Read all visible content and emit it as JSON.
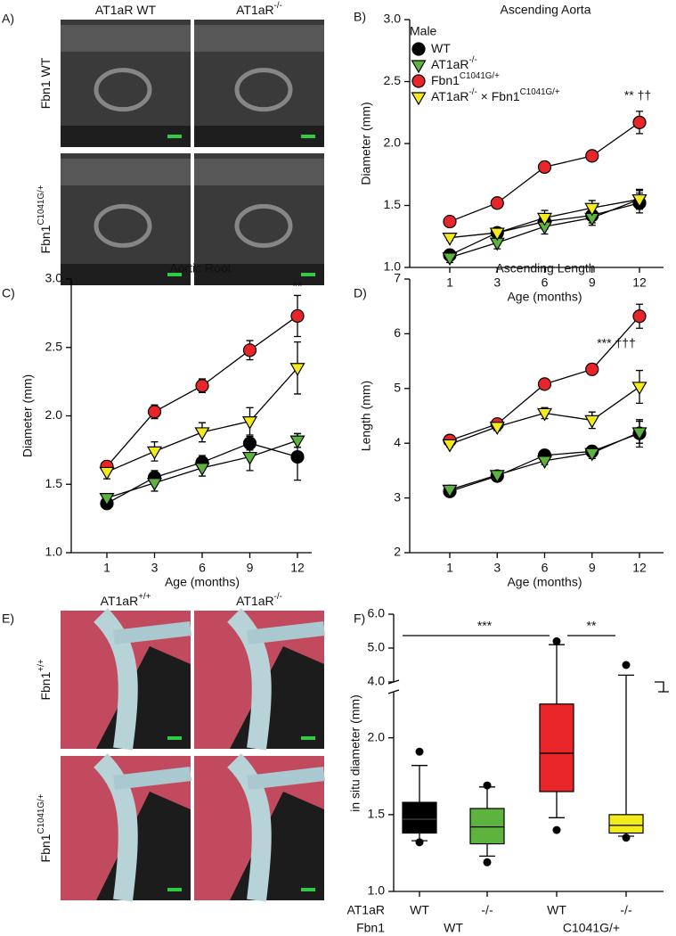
{
  "image_panels": [
    {
      "label": "A)",
      "columns": [
        "AT1aR WT",
        "AT1aR-/-"
      ],
      "rows": [
        "Fbn1 WT",
        "Fbn1C1041G/+"
      ]
    },
    {
      "label": "E)",
      "columns": [
        "AT1aR+/+",
        "AT1aR-/-"
      ],
      "rows": [
        "Fbn1+/+",
        "Fbn1C1041G/+"
      ]
    }
  ],
  "chart_data": [
    {
      "type": "line",
      "panel": "B)",
      "title": "Ascending Aorta",
      "xlabel": "Age (months)",
      "ylabel": "Diameter (mm)",
      "categories": [
        "1",
        "3",
        "6",
        "9",
        "12"
      ],
      "ylim": [
        1,
        3
      ],
      "yticks": [
        {
          "value": 1,
          "label": "1.0"
        },
        1.5,
        {
          "value": 2,
          "label": "2.0"
        },
        2.5,
        {
          "value": 3,
          "label": "3.0"
        }
      ],
      "legend": true,
      "legend_title": "Male",
      "annotation": "** ††",
      "series": [
        {
          "name": "WT",
          "color": "#000000",
          "marker": "circle",
          "values": [
            1.1,
            1.28,
            1.37,
            1.42,
            1.52
          ],
          "errors": [
            0.04,
            0.04,
            0.06,
            0.06,
            0.08
          ]
        },
        {
          "name": "AT1aR-/-",
          "color": "#5db33d",
          "marker": "triangle-down",
          "values": [
            1.08,
            1.2,
            1.33,
            1.4,
            1.55
          ],
          "errors": [
            0.04,
            0.05,
            0.06,
            0.06,
            0.07
          ]
        },
        {
          "name": "Fbn1C1041G/+",
          "color": "#e8262a",
          "marker": "circle",
          "values": [
            1.37,
            1.52,
            1.81,
            1.9,
            2.17
          ],
          "errors": [
            0.02,
            0.02,
            0.04,
            0.04,
            0.09
          ]
        },
        {
          "name": "AT1aR-/- × Fbn1C1041G/+",
          "color": "#f4ec1a",
          "marker": "triangle-down",
          "values": [
            1.24,
            1.28,
            1.4,
            1.48,
            1.55
          ],
          "errors": [
            0.02,
            0.02,
            0.06,
            0.06,
            0.08
          ]
        }
      ]
    },
    {
      "type": "line",
      "panel": "C)",
      "title": "Aortic Root",
      "xlabel": "Age (months)",
      "ylabel": "Diameter (mm)",
      "categories": [
        "1",
        "3",
        "6",
        "9",
        "12"
      ],
      "ylim": [
        1,
        3
      ],
      "yticks": [
        {
          "value": 1,
          "label": "1.0"
        },
        1.5,
        {
          "value": 2,
          "label": "2.0"
        },
        2.5,
        {
          "value": 3,
          "label": "3.0"
        }
      ],
      "legend": false,
      "annotation": "**",
      "series": [
        {
          "color": "#000000",
          "marker": "circle",
          "values": [
            1.36,
            1.55,
            1.66,
            1.8,
            1.7
          ],
          "errors": [
            0.04,
            0.05,
            0.05,
            0.05,
            0.17
          ]
        },
        {
          "color": "#5db33d",
          "marker": "triangle-down",
          "values": [
            1.4,
            1.51,
            1.62,
            1.7,
            1.82
          ],
          "errors": [
            0.03,
            0.06,
            0.06,
            0.1,
            0.05
          ]
        },
        {
          "color": "#e8262a",
          "marker": "circle",
          "values": [
            1.63,
            2.03,
            2.22,
            2.48,
            2.73
          ],
          "errors": [
            0.04,
            0.05,
            0.05,
            0.07,
            0.15
          ]
        },
        {
          "color": "#f4ec1a",
          "marker": "triangle-down",
          "values": [
            1.59,
            1.74,
            1.88,
            1.96,
            2.35
          ],
          "errors": [
            0.05,
            0.07,
            0.07,
            0.1,
            0.19
          ]
        }
      ]
    },
    {
      "type": "line",
      "panel": "D)",
      "title": "Ascending Length",
      "xlabel": "Age (months)",
      "ylabel": "Length (mm)",
      "categories": [
        "1",
        "3",
        "6",
        "9",
        "12"
      ],
      "ylim": [
        2,
        7
      ],
      "yticks": [
        2,
        3,
        4,
        5,
        6,
        7
      ],
      "legend": false,
      "annotation": "*** †††",
      "series": [
        {
          "color": "#000000",
          "marker": "circle",
          "values": [
            3.12,
            3.4,
            3.78,
            3.85,
            4.18
          ],
          "errors": [
            0.05,
            0.05,
            0.05,
            0.1,
            0.25
          ]
        },
        {
          "color": "#5db33d",
          "marker": "triangle-down",
          "values": [
            3.15,
            3.42,
            3.68,
            3.82,
            4.2
          ],
          "errors": [
            0.05,
            0.05,
            0.07,
            0.1,
            0.2
          ]
        },
        {
          "color": "#e8262a",
          "marker": "circle",
          "values": [
            4.05,
            4.35,
            5.08,
            5.35,
            6.32
          ],
          "errors": [
            0.05,
            0.05,
            0.07,
            0.1,
            0.22
          ]
        },
        {
          "color": "#f4ec1a",
          "marker": "triangle-down",
          "values": [
            3.98,
            4.3,
            4.55,
            4.42,
            5.03
          ],
          "errors": [
            0.05,
            0.07,
            0.1,
            0.15,
            0.3
          ]
        }
      ]
    },
    {
      "type": "box",
      "panel": "F)",
      "ylabel": "in situ diameter (mm)",
      "ylim": [
        1,
        6
      ],
      "ybreak": [
        2.3,
        4
      ],
      "yticks": [
        {
          "value": 1,
          "label": "1.0"
        },
        1.5,
        {
          "value": 2,
          "label": "2.0"
        },
        {
          "value": 4,
          "label": "4.0"
        },
        {
          "value": 5,
          "label": "5.0"
        },
        {
          "value": 6,
          "label": "6.0"
        }
      ],
      "row_labels": [
        "AT1aR",
        "Fbn1"
      ],
      "categories": [
        "WT",
        "-/-",
        "WT",
        "-/-"
      ],
      "groups": [
        "WT",
        "C1041G/+"
      ],
      "colors": [
        "#000000",
        "#5db33d",
        "#e8262a",
        "#f4ec1a"
      ],
      "boxes": [
        {
          "min": 1.33,
          "q1": 1.38,
          "median": 1.47,
          "q3": 1.58,
          "max": 1.82,
          "outliers": [
            1.91,
            1.32
          ]
        },
        {
          "min": 1.23,
          "q1": 1.31,
          "median": 1.42,
          "q3": 1.54,
          "max": 1.68,
          "outliers": [
            1.69,
            1.19
          ]
        },
        {
          "min": 1.48,
          "q1": 1.65,
          "median": 1.9,
          "q3": 2.22,
          "max": 5.1,
          "outliers": [
            5.2,
            1.4
          ]
        },
        {
          "min": 1.36,
          "q1": 1.38,
          "median": 1.43,
          "q3": 1.5,
          "max": 4.2,
          "outliers": [
            4.5,
            1.35
          ]
        }
      ],
      "significance": [
        {
          "text": "***",
          "from": 0,
          "to": 2
        },
        {
          "text": "**",
          "from": 2,
          "to": 3
        }
      ]
    }
  ]
}
